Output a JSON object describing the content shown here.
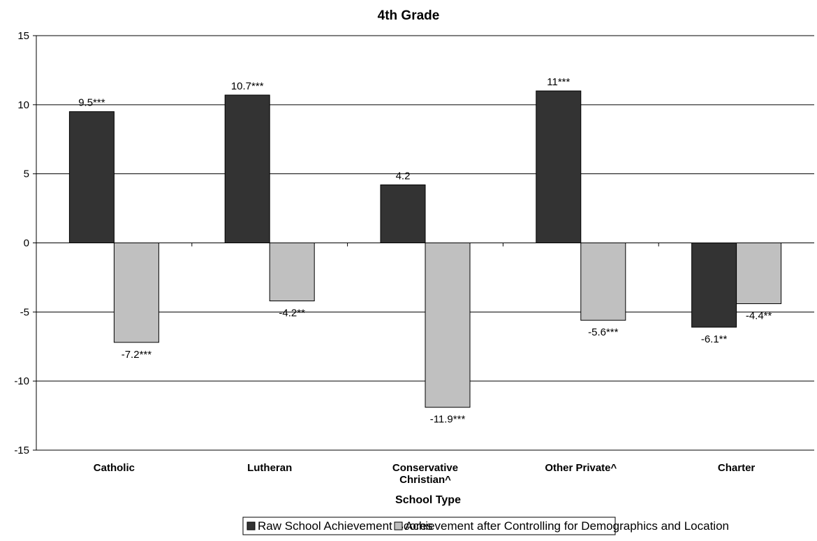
{
  "chart_data": {
    "type": "bar",
    "title": "4th Grade",
    "xlabel": "School Type",
    "ylabel": "",
    "ylim": [
      -15,
      15
    ],
    "yticks": [
      15,
      10,
      5,
      0,
      -5,
      -10,
      -15
    ],
    "grid": true,
    "legend_position": "bottom",
    "categories": [
      [
        "Catholic"
      ],
      [
        "Lutheran"
      ],
      [
        "Conservative",
        "Christian^"
      ],
      [
        "Other Private^"
      ],
      [
        "Charter"
      ]
    ],
    "series": [
      {
        "name": "Raw School Achievement Scores",
        "color": "#333333",
        "values": [
          9.5,
          10.7,
          4.2,
          11,
          -6.1
        ],
        "labels": [
          "9.5***",
          "10.7***",
          "4.2",
          "11***",
          "-6.1**"
        ]
      },
      {
        "name": "Achievement after Controlling for Demographics and Location",
        "color": "#c0c0c0",
        "values": [
          -7.2,
          -4.2,
          -11.9,
          -5.6,
          -4.4
        ],
        "labels": [
          "-7.2***",
          "-4.2**",
          "-11.9***",
          "-5.6***",
          "-4.4**"
        ]
      }
    ]
  }
}
